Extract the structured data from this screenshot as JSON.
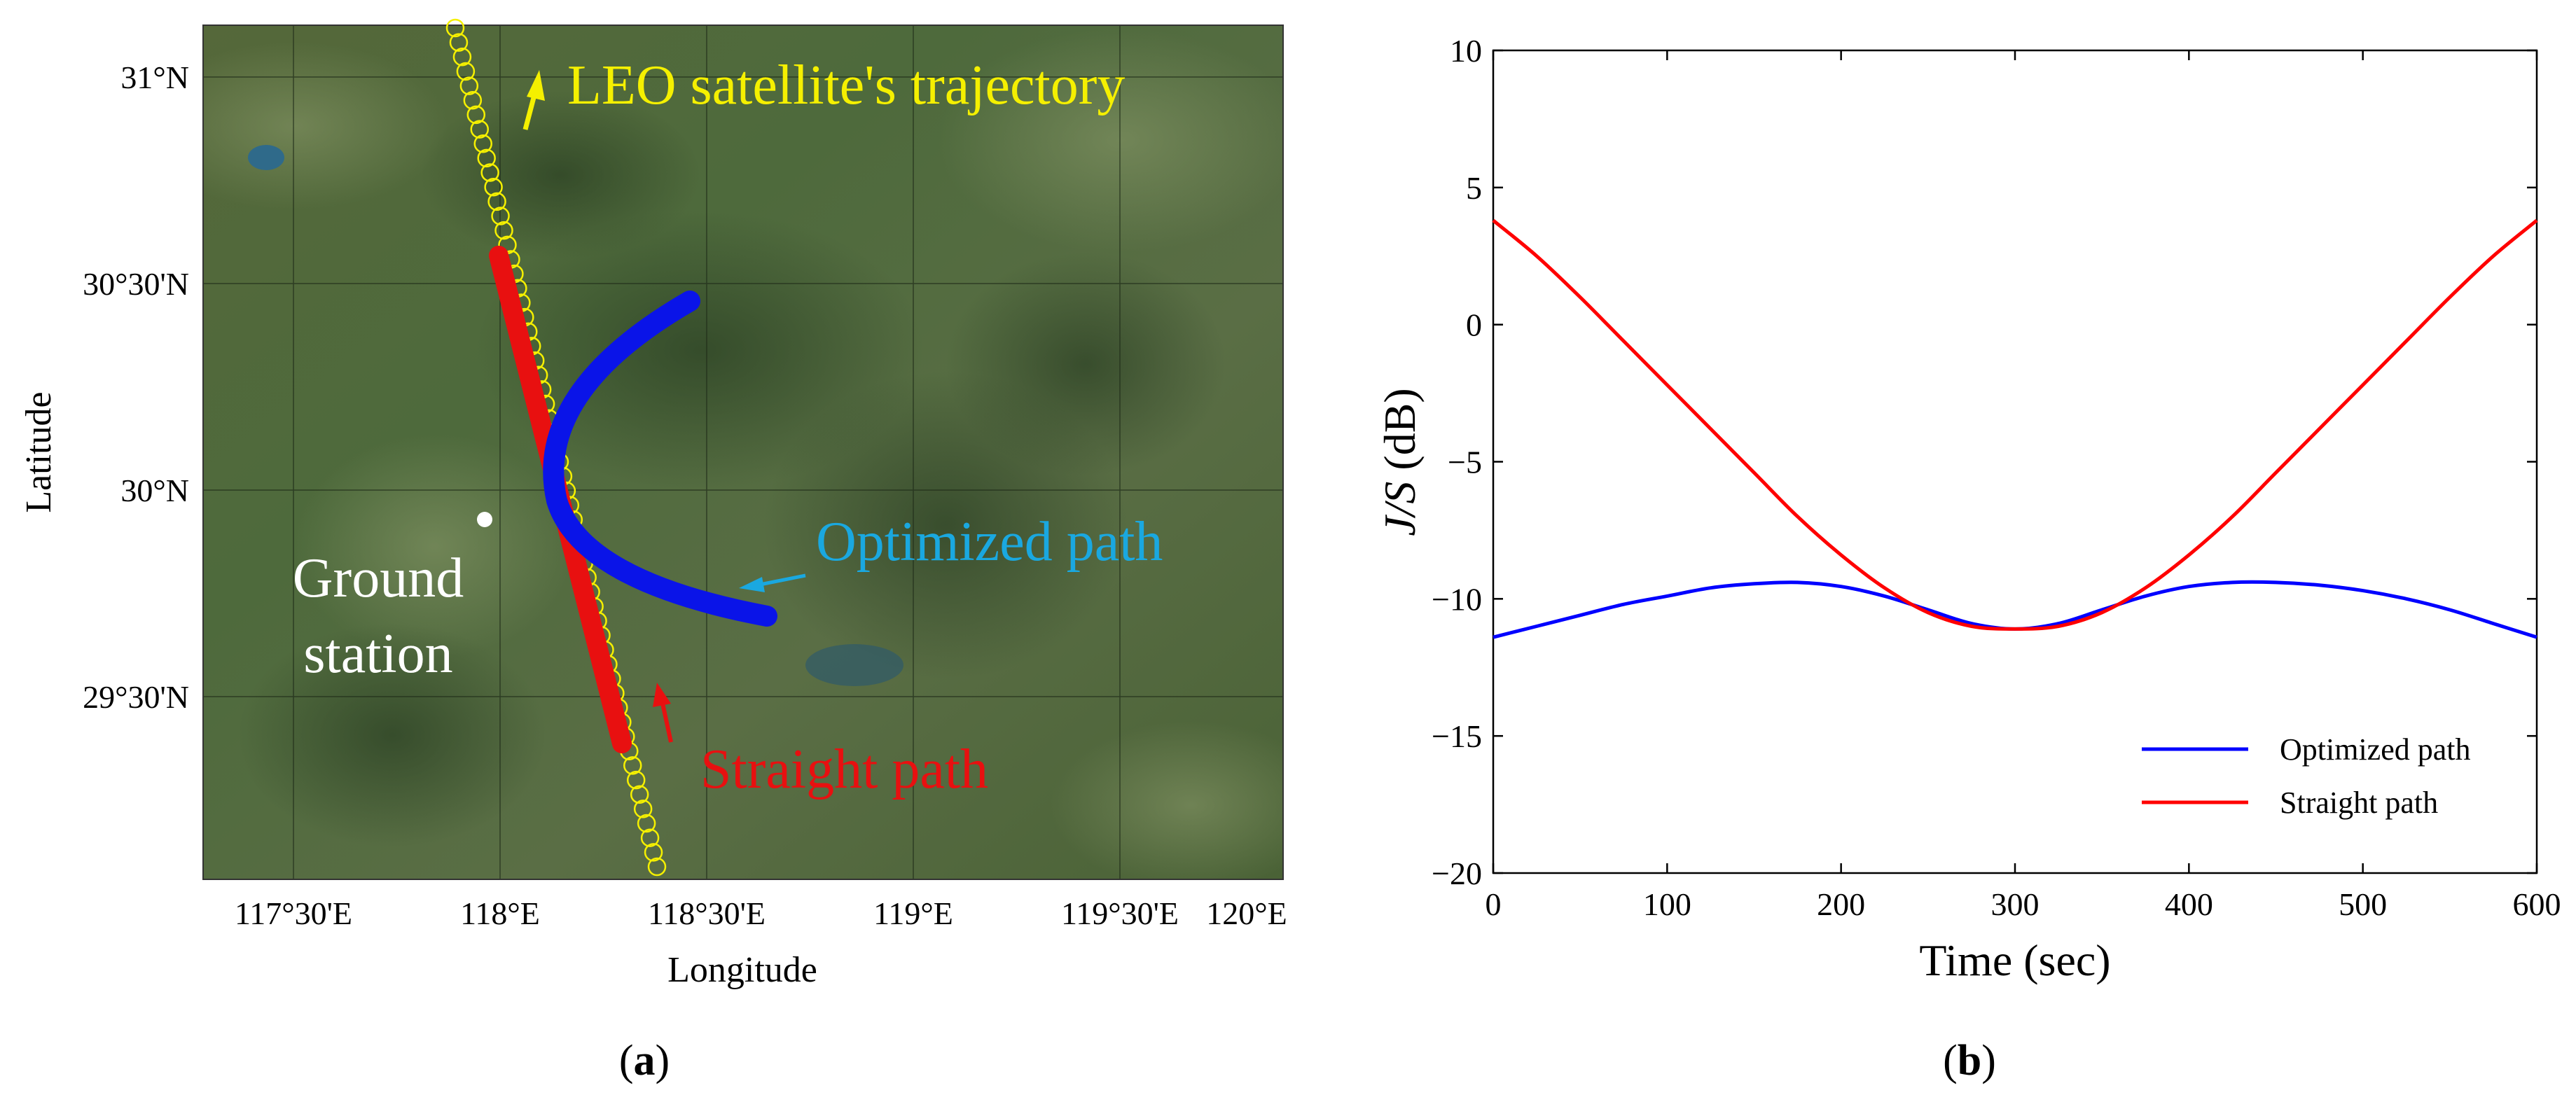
{
  "panel_a": {
    "caption": "a",
    "xlabel": "Longitude",
    "ylabel": "Latitude",
    "xticks": [
      "117°30'E",
      "118°E",
      "118°30'E",
      "119°E",
      "119°30'E",
      "120°E"
    ],
    "yticks": [
      "31°N",
      "30°30'N",
      "30°N",
      "29°30'N"
    ],
    "annotations": {
      "satellite": "LEO satellite's trajectory",
      "optimized": "Optimized path",
      "straight": "Straight path",
      "ground_line1": "Ground",
      "ground_line2": "station"
    },
    "colors": {
      "satellite": "#f5f000",
      "optimized": "#0a14e8",
      "optimized_label": "#1aa8e0",
      "straight": "#e81010",
      "ground": "#ffffff"
    }
  },
  "chart_data": [
    {
      "type": "line",
      "title": "",
      "xlabel": "Time (sec)",
      "ylabel_italic": "J/S",
      "ylabel_rest": " (dB)",
      "xlim": [
        0,
        600
      ],
      "ylim": [
        -20,
        10
      ],
      "xticks": [
        0,
        100,
        200,
        300,
        400,
        500,
        600
      ],
      "yticks": [
        10,
        5,
        0,
        -5,
        -10,
        -15,
        -20
      ],
      "ytick_labels": [
        "10",
        "5",
        "0",
        "−5",
        "−10",
        "−15",
        "−20"
      ],
      "legend_position": "bottom-right",
      "caption": "b",
      "x": [
        0,
        25,
        50,
        75,
        100,
        125,
        150,
        175,
        200,
        225,
        250,
        275,
        300,
        325,
        350,
        375,
        400,
        425,
        450,
        475,
        500,
        525,
        550,
        575,
        600
      ],
      "series": [
        {
          "name": "Optimized path",
          "color": "#0000ff",
          "values": [
            -11.4,
            -11.0,
            -10.6,
            -10.2,
            -9.9,
            -9.6,
            -9.45,
            -9.4,
            -9.55,
            -9.9,
            -10.4,
            -10.9,
            -11.1,
            -10.9,
            -10.4,
            -9.9,
            -9.55,
            -9.4,
            -9.4,
            -9.5,
            -9.7,
            -10.0,
            -10.4,
            -10.9,
            -11.4
          ]
        },
        {
          "name": "Straight path",
          "color": "#ff0000",
          "values": [
            3.8,
            2.5,
            1.0,
            -0.6,
            -2.2,
            -3.8,
            -5.4,
            -7.0,
            -8.4,
            -9.6,
            -10.5,
            -11.0,
            -11.1,
            -11.0,
            -10.5,
            -9.6,
            -8.4,
            -7.0,
            -5.4,
            -3.8,
            -2.2,
            -0.6,
            1.0,
            2.5,
            3.8
          ]
        }
      ]
    }
  ]
}
